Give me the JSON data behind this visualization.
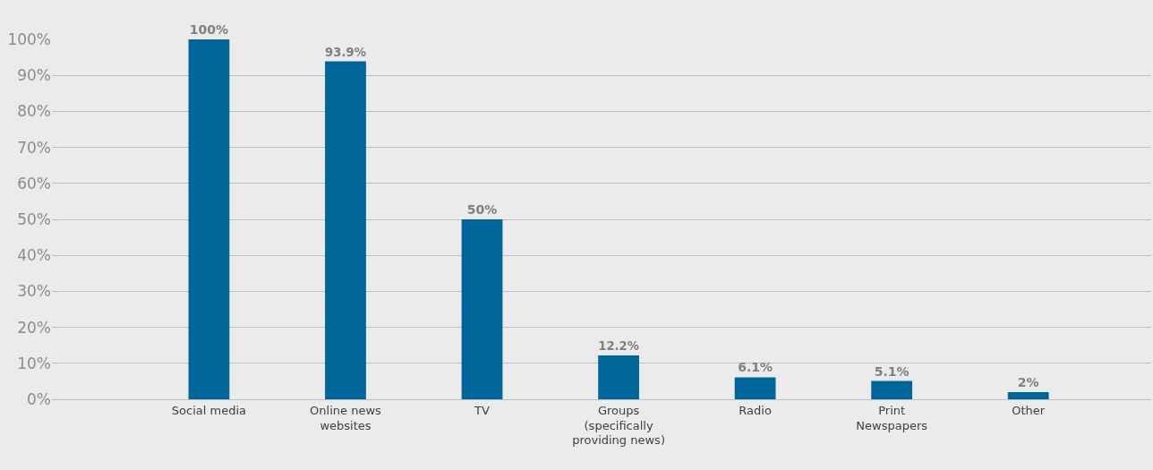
{
  "chart_data": {
    "type": "bar",
    "categories": [
      "Social media",
      "Online news websites",
      "TV",
      "Groups (specifically providing news)",
      "Radio",
      "Print Newspapers",
      "Other"
    ],
    "values": [
      100,
      93.9,
      50,
      12.2,
      6.1,
      5.1,
      2
    ],
    "value_labels": [
      "100%",
      "93.9%",
      "50%",
      "12.2%",
      "6.1%",
      "5.1%",
      "2%"
    ],
    "color": "#006699",
    "ylim": [
      0,
      100
    ],
    "yticks": [
      {
        "value": 0,
        "label": "0%"
      },
      {
        "value": 10,
        "label": "10%"
      },
      {
        "value": 20,
        "label": "20%"
      },
      {
        "value": 30,
        "label": "30%"
      },
      {
        "value": 40,
        "label": "40%"
      },
      {
        "value": 50,
        "label": "50%"
      },
      {
        "value": 60,
        "label": "60%"
      },
      {
        "value": 70,
        "label": "70%"
      },
      {
        "value": 80,
        "label": "80%"
      },
      {
        "value": 90,
        "label": "90%"
      },
      {
        "value": 100,
        "label": "100%"
      }
    ],
    "grid": "y"
  }
}
